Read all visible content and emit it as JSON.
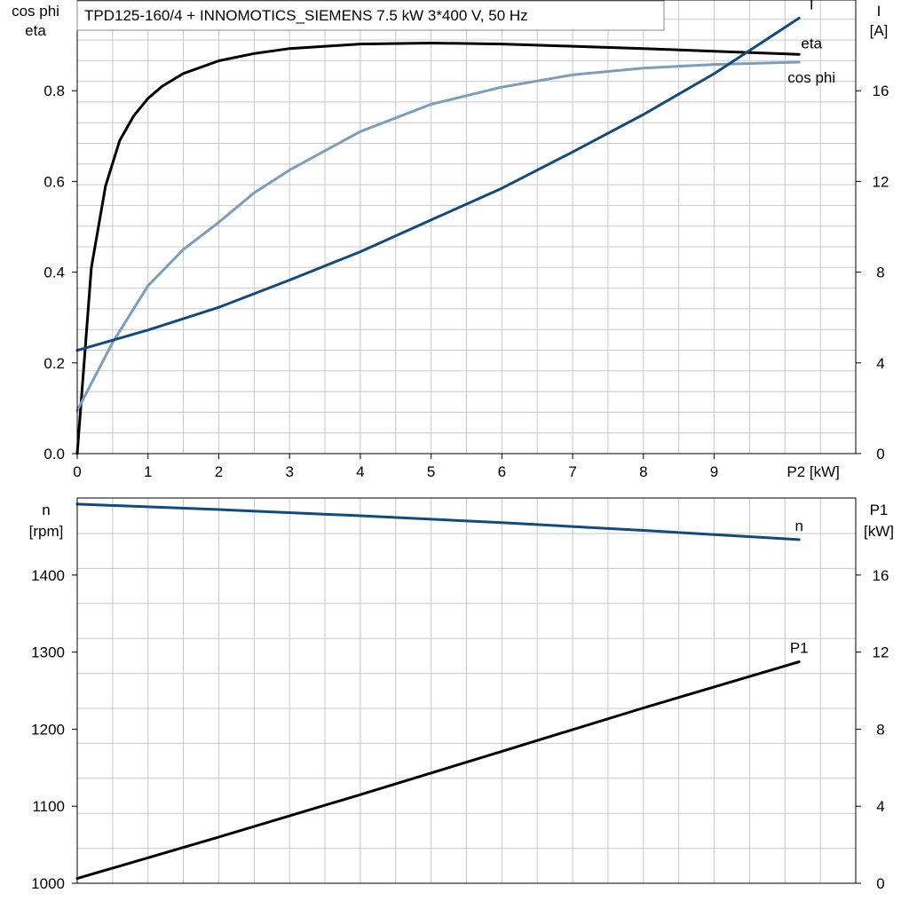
{
  "title": "TPD125-160/4 + INNOMOTICS_SIEMENS   7.5 kW   3*400 V, 50 Hz",
  "colors": {
    "dark_blue": "#114a7e",
    "light_blue": "#7b9ebd",
    "black": "#000000",
    "grid": "#c8c8c8"
  },
  "chart_data": [
    {
      "type": "line",
      "title": "TPD125-160/4 + INNOMOTICS_SIEMENS   7.5 kW   3*400 V, 50 Hz",
      "xlabel": "P2 [kW]",
      "x_ticks": [
        0,
        1,
        2,
        3,
        4,
        5,
        6,
        7,
        8,
        9
      ],
      "xlim": [
        0,
        11
      ],
      "ylabel_left": [
        "cos phi",
        "eta"
      ],
      "ylim_left": [
        0,
        1.0
      ],
      "y_ticks_left": [
        "0.0",
        "0.2",
        "0.4",
        "0.6",
        "0.8"
      ],
      "ylabel_right": [
        "I",
        "[A]"
      ],
      "ylim_right": [
        0,
        20
      ],
      "y_ticks_right": [
        "0",
        "4",
        "8",
        "12",
        "16"
      ],
      "grid": true,
      "series": [
        {
          "name": "eta",
          "axis": "left",
          "color": "#000000",
          "x": [
            0,
            0.2,
            0.4,
            0.6,
            0.8,
            1.0,
            1.2,
            1.5,
            2.0,
            2.5,
            3.0,
            4.0,
            5.0,
            6.0,
            7.0,
            8.0,
            9.0,
            10.2
          ],
          "y": [
            0.0,
            0.41,
            0.59,
            0.69,
            0.745,
            0.783,
            0.81,
            0.838,
            0.866,
            0.882,
            0.893,
            0.903,
            0.905,
            0.903,
            0.898,
            0.893,
            0.887,
            0.88
          ]
        },
        {
          "name": "cos phi",
          "axis": "left",
          "color": "#7b9ebd",
          "x": [
            0,
            0.5,
            1.0,
            1.5,
            2.0,
            2.5,
            3.0,
            4.0,
            5.0,
            6.0,
            7.0,
            8.0,
            9.0,
            10.2
          ],
          "y": [
            0.095,
            0.245,
            0.37,
            0.45,
            0.51,
            0.575,
            0.625,
            0.71,
            0.77,
            0.808,
            0.835,
            0.85,
            0.858,
            0.863
          ]
        },
        {
          "name": "I",
          "axis": "right",
          "color": "#114a7e",
          "x": [
            0,
            1.0,
            2.0,
            3.0,
            4.0,
            5.0,
            6.0,
            7.0,
            8.0,
            9.0,
            10.2
          ],
          "y": [
            4.55,
            5.45,
            6.45,
            7.65,
            8.9,
            10.3,
            11.7,
            13.3,
            14.95,
            16.75,
            19.2
          ]
        }
      ]
    },
    {
      "type": "line",
      "xlim": [
        0,
        11
      ],
      "ylabel_left": [
        "n",
        "[rpm]"
      ],
      "ylim_left": [
        1000,
        1500
      ],
      "y_ticks_left": [
        "1000",
        "1100",
        "1200",
        "1300",
        "1400"
      ],
      "ylabel_right": [
        "P1",
        "[kW]"
      ],
      "ylim_right": [
        0,
        20
      ],
      "y_ticks_right": [
        "0",
        "4",
        "8",
        "12",
        "16"
      ],
      "grid": true,
      "series": [
        {
          "name": "n",
          "axis": "left",
          "color": "#114a7e",
          "x": [
            0,
            2.0,
            4.0,
            6.0,
            8.0,
            10.2
          ],
          "y": [
            1492,
            1485,
            1477,
            1468,
            1458,
            1446
          ]
        },
        {
          "name": "P1",
          "axis": "right",
          "color": "#000000",
          "x": [
            0,
            2.0,
            4.0,
            6.0,
            8.0,
            10.2
          ],
          "y": [
            0.25,
            2.4,
            4.6,
            6.85,
            9.1,
            11.5
          ]
        }
      ]
    }
  ]
}
